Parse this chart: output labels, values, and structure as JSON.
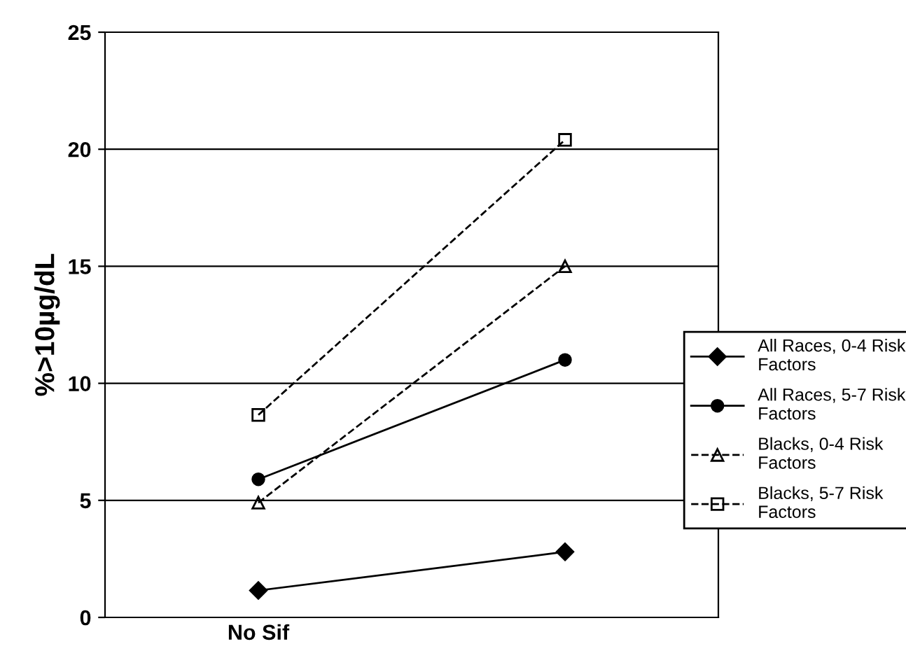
{
  "chart_data": {
    "type": "line",
    "ylabel": "%>10µg/dL",
    "categories": [
      "No Sif",
      null
    ],
    "series": [
      {
        "name": "All Races, 0-4 Risk Factors",
        "color": "#000000",
        "marker": "diamond",
        "line_style": "solid",
        "values": [
          1.15,
          2.8
        ]
      },
      {
        "name": "All Races, 5-7 Risk Factors",
        "color": "#000000",
        "marker": "circle",
        "line_style": "solid",
        "values": [
          5.9,
          11.0
        ]
      },
      {
        "name": "Blacks, 0-4 Risk Factors",
        "color": "#000000",
        "marker": "triangle",
        "line_style": "dashed",
        "values": [
          4.9,
          15.0
        ]
      },
      {
        "name": "Blacks, 5-7 Risk Factors",
        "color": "#000000",
        "marker": "square",
        "line_style": "dashed",
        "values": [
          8.65,
          20.4
        ]
      }
    ],
    "ylim": [
      0,
      25
    ],
    "yticks": [
      0,
      5,
      10,
      15,
      20,
      25
    ],
    "grid": "y",
    "legend": "right"
  }
}
